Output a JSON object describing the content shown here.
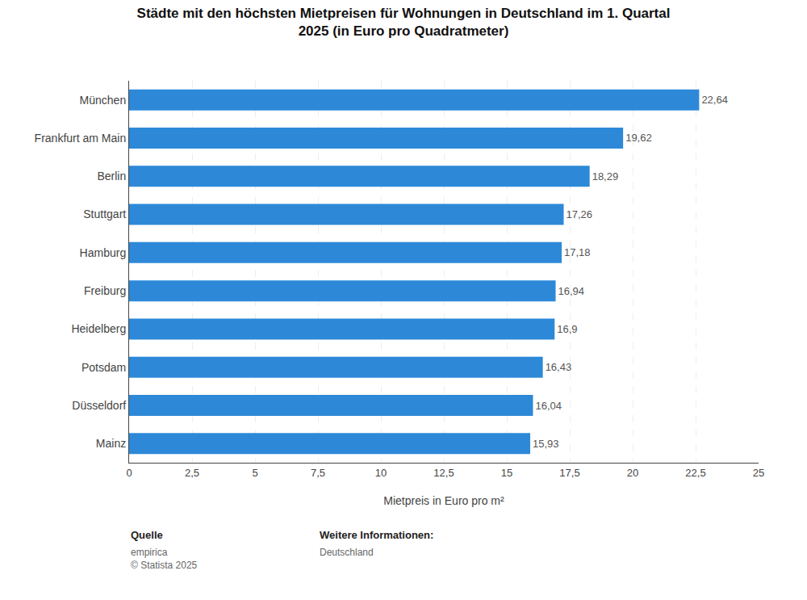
{
  "chart_data": {
    "type": "bar",
    "orientation": "horizontal",
    "title": "Städte mit den höchsten Mietpreisen für Wohnungen in Deutschland im 1. Quartal\n2025 (in Euro pro Quadratmeter)",
    "categories": [
      "München",
      "Frankfurt am Main",
      "Berlin",
      "Stuttgart",
      "Hamburg",
      "Freiburg",
      "Heidelberg",
      "Potsdam",
      "Düsseldorf",
      "Mainz"
    ],
    "values": [
      22.64,
      19.62,
      18.29,
      17.26,
      17.18,
      16.94,
      16.9,
      16.43,
      16.04,
      15.93
    ],
    "value_labels": [
      "22,64",
      "19,62",
      "18,29",
      "17,26",
      "17,18",
      "16,94",
      "16,9",
      "16,43",
      "16,04",
      "15,93"
    ],
    "data_labels": true,
    "color": "#2d89d8",
    "xlabel": "Mietpreis in Euro pro m²",
    "xlim": [
      0,
      25
    ],
    "xticks": [
      0,
      {
        "value": 2.5,
        "label": "2,5"
      },
      5,
      {
        "value": 7.5,
        "label": "7,5"
      },
      10,
      {
        "value": 12.5,
        "label": "12,5"
      },
      15,
      {
        "value": 17.5,
        "label": "17,5"
      },
      20,
      {
        "value": 22.5,
        "label": "22,5"
      },
      25
    ],
    "grid": true,
    "annotations": [
      {
        "heading": "Quelle",
        "text": "empirica\n© Statista 2025"
      },
      {
        "heading": "Weitere Informationen:",
        "text": "Deutschland"
      }
    ]
  }
}
